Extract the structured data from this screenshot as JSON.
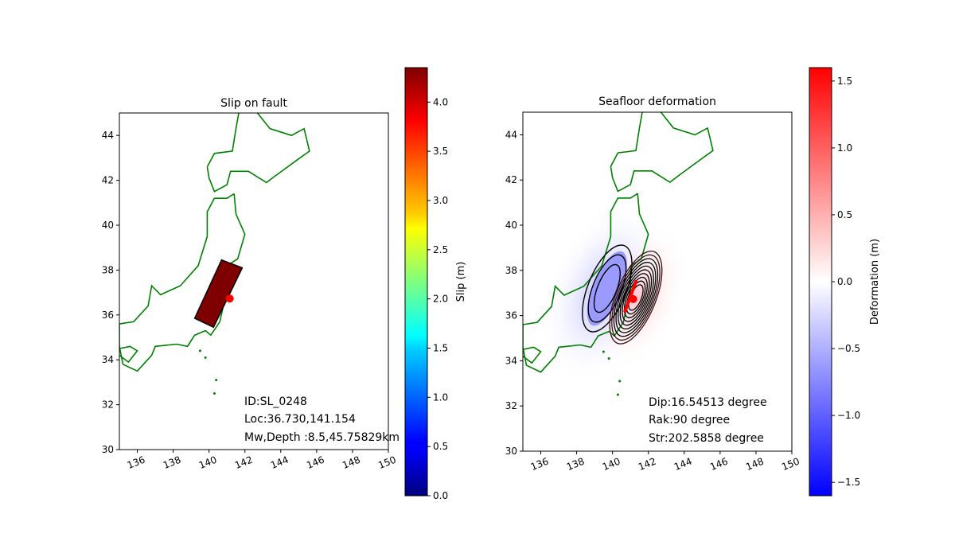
{
  "chart_data": [
    {
      "type": "map",
      "title": "Slip on fault",
      "xlim": [
        135,
        150
      ],
      "ylim": [
        30,
        45
      ],
      "xticks": [
        136,
        138,
        140,
        142,
        144,
        146,
        148,
        150
      ],
      "yticks": [
        30,
        32,
        34,
        36,
        38,
        40,
        42,
        44
      ],
      "fault": {
        "corners": [
          [
            141.85,
            38.1
          ],
          [
            140.7,
            38.45
          ],
          [
            139.2,
            35.85
          ],
          [
            140.25,
            35.45
          ]
        ],
        "color": "#7f0000"
      },
      "epicenter": {
        "lon": 141.154,
        "lat": 36.73,
        "color": "#ff0000"
      },
      "annotations": [
        "ID:SL_0248",
        "Loc:36.730,141.154",
        "Mw,Depth :8.5,45.75829km"
      ],
      "colorbar": {
        "label": "Slip (m)",
        "range": [
          0,
          4.35
        ],
        "ticks": [
          0.0,
          0.5,
          1.0,
          1.5,
          2.0,
          2.5,
          3.0,
          3.5,
          4.0
        ],
        "tick_labels": [
          "0.0",
          "0.5",
          "1.0",
          "1.5",
          "2.0",
          "2.5",
          "3.0",
          "3.5",
          "4.0"
        ],
        "colormap": "jet"
      },
      "coastline_color": "#008000"
    },
    {
      "type": "map",
      "title": "Seafloor deformation",
      "xlim": [
        135,
        150
      ],
      "ylim": [
        30,
        45
      ],
      "xticks": [
        136,
        138,
        140,
        142,
        144,
        146,
        148,
        150
      ],
      "yticks": [
        30,
        32,
        34,
        36,
        38,
        40,
        42,
        44
      ],
      "subsidence": {
        "lon": 139.7,
        "lat": 37.2,
        "min": -0.9,
        "contour_levels": 3
      },
      "uplift": {
        "lon": 141.3,
        "lat": 36.8,
        "max": 1.55,
        "contour_levels": 10
      },
      "annotations": [
        "Dip:16.54513 degree",
        "Rak:90 degree",
        "Str:202.5858 degree"
      ],
      "colorbar": {
        "label": "Deformation (m)",
        "range": [
          -1.6,
          1.6
        ],
        "ticks": [
          -1.5,
          -1.0,
          -0.5,
          0.0,
          0.5,
          1.0,
          1.5
        ],
        "tick_labels": [
          "−1.5",
          "−1.0",
          "−0.5",
          "0.0",
          "0.5",
          "1.0",
          "1.5"
        ],
        "colormap": "bwr"
      },
      "coastline_color": "#008000"
    }
  ]
}
